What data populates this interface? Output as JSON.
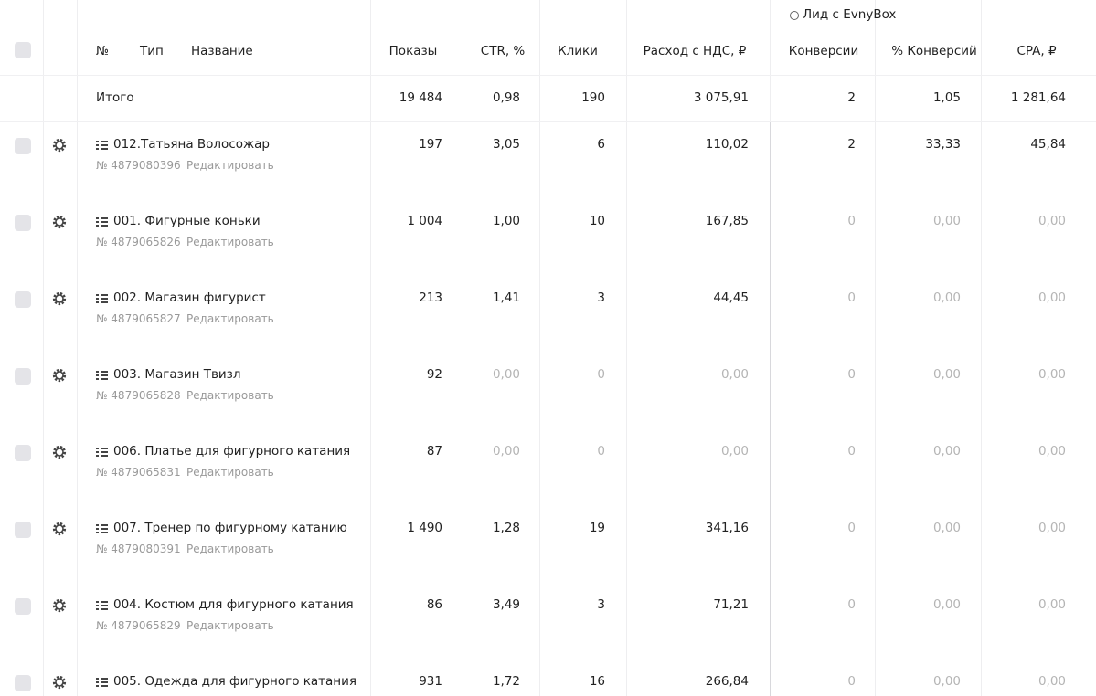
{
  "header": {
    "group_label": "Лид с EvnyBox",
    "columns": [
      "№",
      "Тип",
      "Название",
      "Показы",
      "CTR, %",
      "Клики",
      "Расход с НДС, ₽",
      "Конверсии",
      "% Конверсий",
      "CPA, ₽"
    ]
  },
  "totals": {
    "label": "Итого",
    "values": [
      "19 484",
      "0,98",
      "190",
      "3 075,91",
      "2",
      "1,05",
      "1 281,64"
    ]
  },
  "rows": [
    {
      "name": "012.Татьяна Волосожар",
      "id": "№ 4879080396",
      "edit": "Редактировать",
      "values": [
        "197",
        "3,05",
        "6",
        "110,02",
        "2",
        "33,33",
        "45,84"
      ]
    },
    {
      "name": "001. Фигурные коньки",
      "id": "№ 4879065826",
      "edit": "Редактировать",
      "values": [
        "1 004",
        "1,00",
        "10",
        "167,85",
        "0",
        "0,00",
        "0,00"
      ]
    },
    {
      "name": "002. Магазин фигурист",
      "id": "№ 4879065827",
      "edit": "Редактировать",
      "values": [
        "213",
        "1,41",
        "3",
        "44,45",
        "0",
        "0,00",
        "0,00"
      ]
    },
    {
      "name": "003. Магазин Твизл",
      "id": "№ 4879065828",
      "edit": "Редактировать",
      "values": [
        "92",
        "0,00",
        "0",
        "0,00",
        "0",
        "0,00",
        "0,00"
      ]
    },
    {
      "name": "006. Платье для фигурного катания",
      "id": "№ 4879065831",
      "edit": "Редактировать",
      "values": [
        "87",
        "0,00",
        "0",
        "0,00",
        "0",
        "0,00",
        "0,00"
      ]
    },
    {
      "name": "007. Тренер по фигурному катанию",
      "id": "№ 4879080391",
      "edit": "Редактировать",
      "values": [
        "1 490",
        "1,28",
        "19",
        "341,16",
        "0",
        "0,00",
        "0,00"
      ]
    },
    {
      "name": "004. Костюм для фигурного катания",
      "id": "№ 4879065829",
      "edit": "Редактировать",
      "values": [
        "86",
        "3,49",
        "3",
        "71,21",
        "0",
        "0,00",
        "0,00"
      ]
    },
    {
      "name": "005. Одежда для фигурного катания",
      "values": [
        "931",
        "1,72",
        "16",
        "266,84",
        "0",
        "0,00",
        "0,00"
      ]
    }
  ]
}
